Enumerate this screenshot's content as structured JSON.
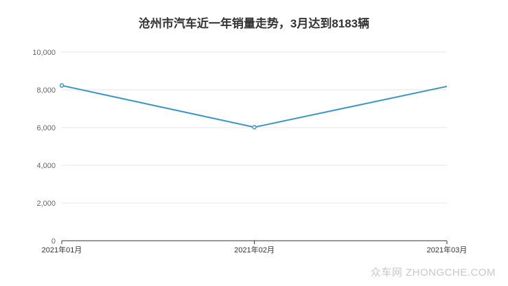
{
  "chart_data": {
    "type": "line",
    "title": "沧州市汽车近一年销量走势，3月达到8183辆",
    "categories": [
      "2021年01月",
      "2021年02月",
      "2021年03月"
    ],
    "series": [
      {
        "values": [
          8230,
          6020,
          8183
        ]
      }
    ],
    "ylim": [
      0,
      10000
    ],
    "yticks": [
      "0",
      "2,000",
      "4,000",
      "6,000",
      "8,000",
      "10,000"
    ],
    "grid": true,
    "colors": {
      "line": "#3a96c8",
      "grid": "#e6e6e6",
      "axis": "#333333",
      "tick_text": "#666666"
    }
  },
  "watermark": "众车网 ZHONGCHE.COM"
}
